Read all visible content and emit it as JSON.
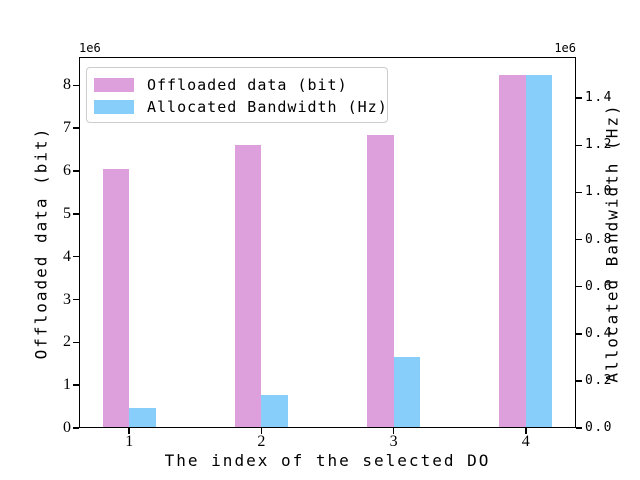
{
  "chart_data": {
    "type": "bar",
    "title": "",
    "xlabel": "The index of the selected DO",
    "categories": [
      "1",
      "2",
      "3",
      "4"
    ],
    "x_values": [
      1,
      2,
      3,
      4
    ],
    "xlim": [
      0.62,
      4.38
    ],
    "bar_width": 0.2,
    "grid": false,
    "series": [
      {
        "name": "Offloaded data (bit)",
        "axis": "left",
        "color": "#DDA0DD",
        "values": [
          6050000,
          6600000,
          6850000,
          8250000
        ]
      },
      {
        "name": "Allocated Bandwidth (Hz)",
        "axis": "right",
        "color": "#87CEFA",
        "values": [
          85000,
          140000,
          300000,
          1500000
        ]
      }
    ],
    "left_axis": {
      "label": "Offloaded data (bit)",
      "offset_text": "1e6",
      "scale": 1000000,
      "lim": [
        0,
        8662500
      ],
      "tick_values": [
        0,
        1000000,
        2000000,
        3000000,
        4000000,
        5000000,
        6000000,
        7000000,
        8000000
      ],
      "tick_labels": [
        "0",
        "1",
        "2",
        "3",
        "4",
        "5",
        "6",
        "7",
        "8"
      ]
    },
    "right_axis": {
      "label": "Allocated Bandwidth (Hz)",
      "offset_text": "1e6",
      "scale": 1000000,
      "lim": [
        0,
        1575000
      ],
      "tick_values": [
        0,
        200000,
        400000,
        600000,
        800000,
        1000000,
        1200000,
        1400000
      ],
      "tick_labels": [
        "0.0",
        "0.2",
        "0.4",
        "0.6",
        "0.8",
        "1.0",
        "1.2",
        "1.4"
      ]
    },
    "legend": {
      "position": "upper left",
      "entries": [
        "Offloaded data (bit)",
        "Allocated Bandwidth (Hz)"
      ]
    },
    "colors": {
      "offloaded_data": "#DDA0DD",
      "allocated_bandwidth": "#87CEFA",
      "spine": "#000000",
      "background": "#ffffff",
      "legend_border": "#cccccc"
    }
  }
}
